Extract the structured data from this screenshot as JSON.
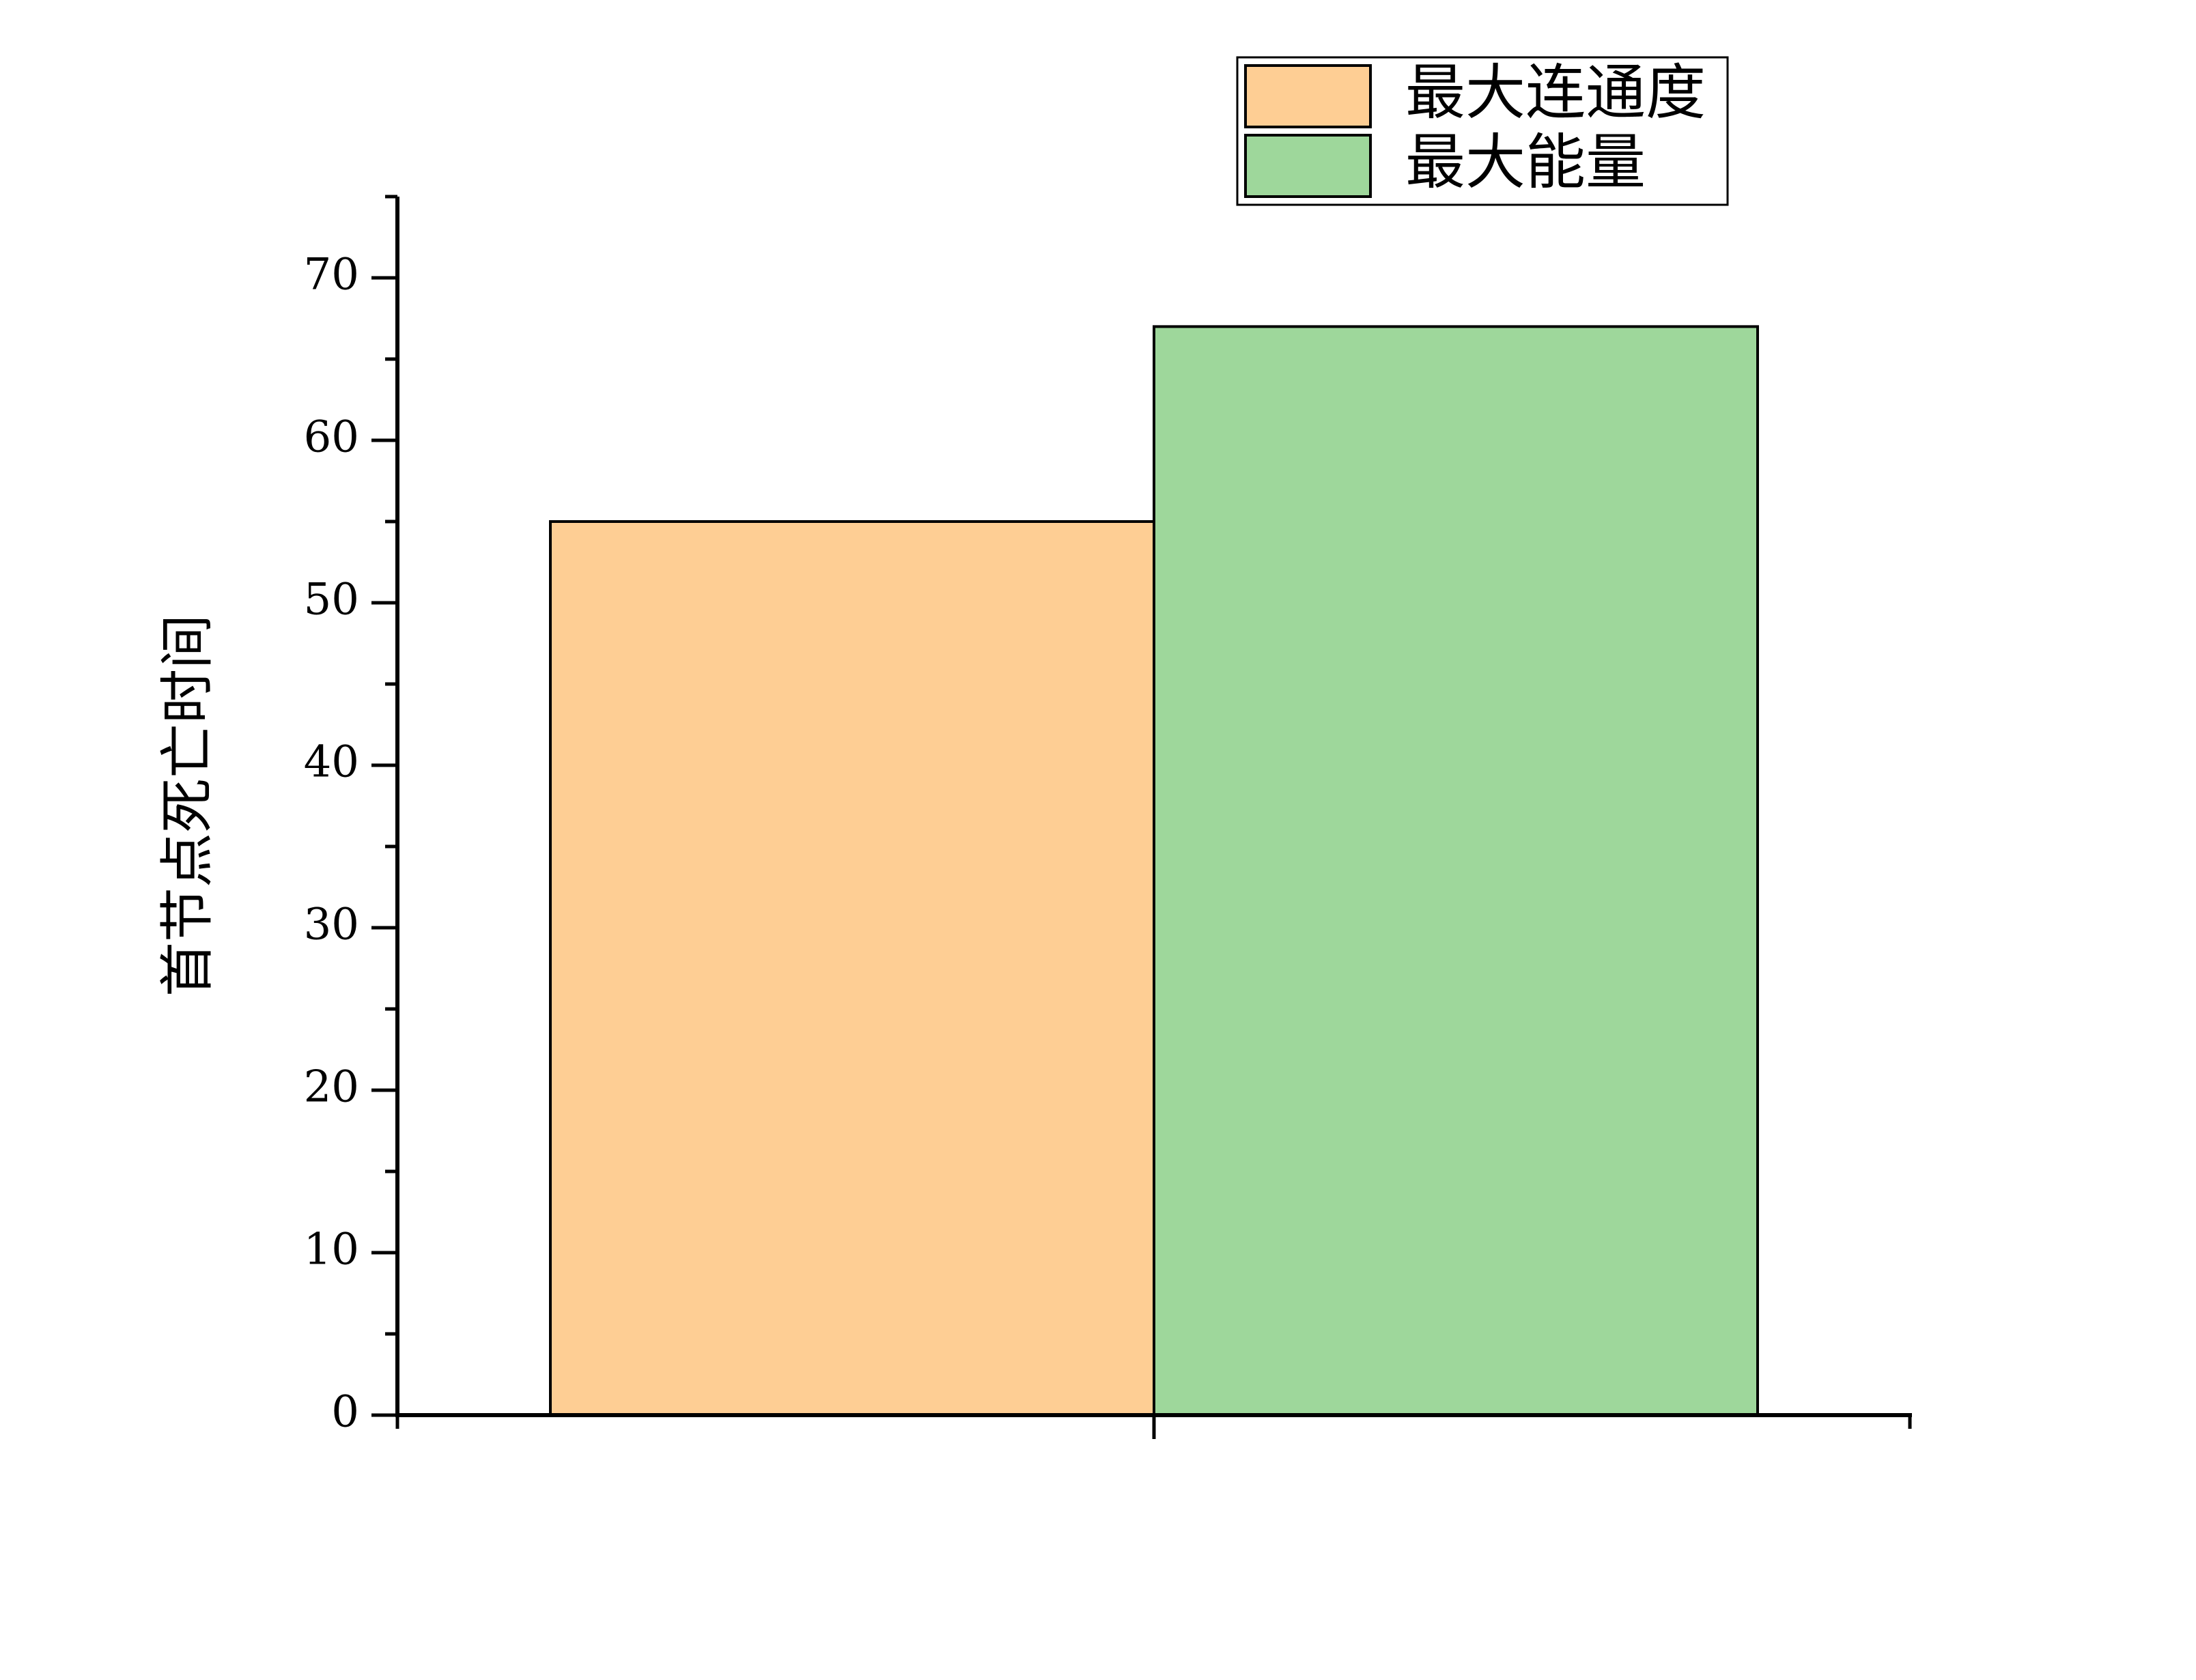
{
  "chart_data": {
    "type": "bar",
    "title": "",
    "xlabel": "",
    "ylabel": "首节点死亡时间",
    "ylim": [
      0,
      75
    ],
    "yticks": [
      0,
      10,
      20,
      30,
      40,
      50,
      60,
      70
    ],
    "grid": false,
    "legend_position": "top-right",
    "series": [
      {
        "name": "最大连通度",
        "values": [
          55
        ],
        "color": "#FECE94"
      },
      {
        "name": "最大能量",
        "values": [
          67
        ],
        "color": "#9ED79B"
      }
    ]
  }
}
